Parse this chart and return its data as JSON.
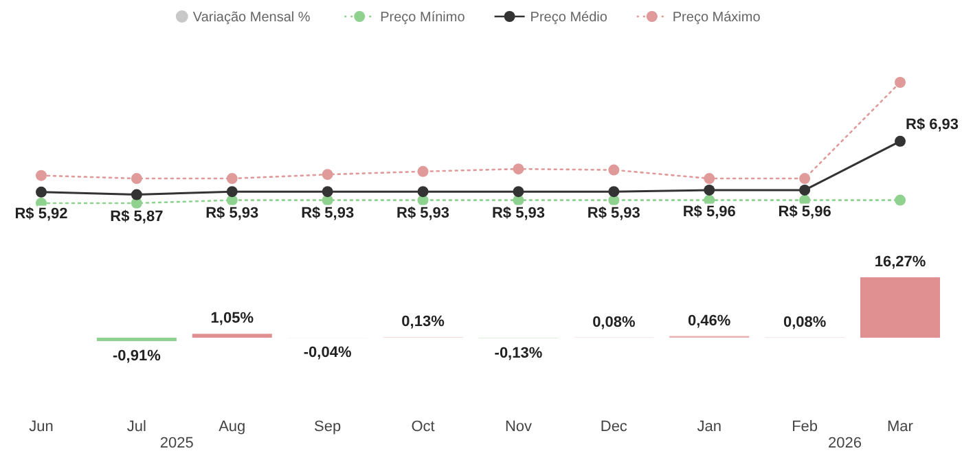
{
  "chart_data": [
    {
      "type": "line",
      "legend": "top",
      "marker": "circle",
      "categories": [
        null,
        null,
        null,
        null,
        null,
        null,
        null,
        null,
        null,
        null
      ],
      "series": [
        {
          "name": "Preço Mínimo",
          "color": "#8fd18f",
          "line_style": "dotted",
          "values": [
            5.7,
            5.7,
            5.76,
            5.76,
            5.76,
            5.76,
            5.76,
            5.76,
            5.76,
            5.76
          ]
        },
        {
          "name": "Preço Médio",
          "color": "#333333",
          "line_style": "solid",
          "values": [
            5.92,
            5.87,
            5.93,
            5.93,
            5.93,
            5.93,
            5.93,
            5.96,
            5.96,
            6.93
          ],
          "value_labels": [
            "R$ 5,92",
            "R$ 5,87",
            "R$ 5,93",
            "R$ 5,93",
            "R$ 5,93",
            "R$ 5,93",
            "R$ 5,93",
            "R$ 5,96",
            "R$ 5,96",
            "R$ 6,93"
          ]
        },
        {
          "name": "Preço Máximo",
          "color": "#e09a9a",
          "line_style": "dotted",
          "values": [
            6.25,
            6.19,
            6.19,
            6.27,
            6.33,
            6.38,
            6.36,
            6.19,
            6.19,
            8.1
          ]
        }
      ]
    },
    {
      "type": "bar",
      "legend": "top",
      "categories": [
        "Jun",
        "Jul",
        "Aug",
        "Sep",
        "Oct",
        "Nov",
        "Dec",
        "Jan",
        "Feb",
        "Mar"
      ],
      "annotations": [
        "2025",
        "2026"
      ],
      "series": [
        {
          "name": "Variação Mensal %",
          "color": "#c8c8c8",
          "values": [
            null,
            -0.91,
            1.05,
            -0.04,
            0.13,
            -0.13,
            0.08,
            0.46,
            0.08,
            16.27
          ],
          "colors": [
            null,
            "#8fd18f",
            "#e09090",
            "#c8e8c8",
            "#f0c8c8",
            "#c8e8c8",
            "#f0c8c8",
            "#e8b0b0",
            "#f0c8c8",
            "#e09090"
          ],
          "value_labels": [
            null,
            "-0,91%",
            "1,05%",
            "-0,04%",
            "0,13%",
            "-0,13%",
            "0,08%",
            "0,46%",
            "0,08%",
            "16,27%"
          ]
        }
      ]
    }
  ]
}
